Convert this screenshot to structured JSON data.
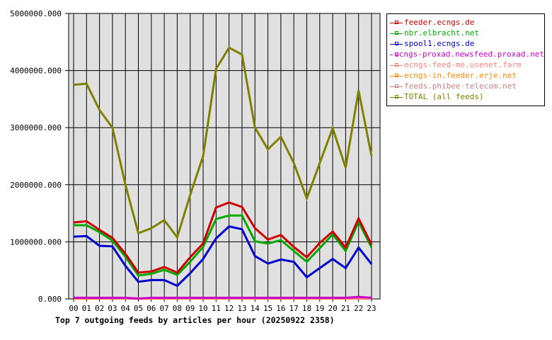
{
  "chart_data": {
    "type": "line",
    "title": "Top 7 outgoing feeds by articles per hour (20250922 2358)",
    "xlabel": "",
    "ylabel": "",
    "ylim": [
      0,
      5000000
    ],
    "yticks": [
      "0.000",
      "1000000.000",
      "2000000.000",
      "3000000.000",
      "4000000.000",
      "5000000.000"
    ],
    "grid": true,
    "legend_position": "right",
    "categories": [
      "00",
      "01",
      "02",
      "03",
      "04",
      "05",
      "06",
      "07",
      "08",
      "09",
      "10",
      "11",
      "12",
      "13",
      "14",
      "15",
      "16",
      "17",
      "18",
      "19",
      "20",
      "21",
      "22",
      "23"
    ],
    "series": [
      {
        "name": "feeder.ecngs.de",
        "color": "#cc0000",
        "values": [
          1340000,
          1360000,
          1210000,
          1070000,
          790000,
          460000,
          480000,
          560000,
          460000,
          730000,
          970000,
          1600000,
          1690000,
          1610000,
          1240000,
          1040000,
          1120000,
          910000,
          730000,
          980000,
          1180000,
          900000,
          1410000,
          950000
        ]
      },
      {
        "name": "nbr.elbracht.net",
        "color": "#00aa00",
        "values": [
          1290000,
          1290000,
          1170000,
          1020000,
          740000,
          410000,
          440000,
          510000,
          420000,
          650000,
          910000,
          1400000,
          1460000,
          1460000,
          1010000,
          970000,
          1030000,
          840000,
          650000,
          890000,
          1130000,
          840000,
          1350000,
          900000
        ]
      },
      {
        "name": "spool1.ecngs.de",
        "color": "#0000cc",
        "values": [
          1090000,
          1100000,
          930000,
          920000,
          580000,
          300000,
          330000,
          330000,
          230000,
          450000,
          700000,
          1060000,
          1270000,
          1220000,
          750000,
          620000,
          690000,
          650000,
          380000,
          540000,
          700000,
          540000,
          900000,
          610000
        ]
      },
      {
        "name": "ecngs-proxad.newsfeed.proxad.net",
        "color": "#cc00cc",
        "values": [
          20000,
          20000,
          20000,
          20000,
          20000,
          5000,
          20000,
          20000,
          20000,
          20000,
          20000,
          20000,
          20000,
          20000,
          20000,
          20000,
          20000,
          20000,
          20000,
          20000,
          20000,
          20000,
          35000,
          20000
        ]
      },
      {
        "name": "ecngs-feed-me.usenet.farm",
        "color": "#ff8080",
        "values": [
          15000,
          15000,
          10000,
          10000,
          10000,
          10000,
          10000,
          10000,
          10000,
          10000,
          10000,
          10000,
          10000,
          10000,
          10000,
          10000,
          10000,
          10000,
          10000,
          10000,
          10000,
          10000,
          10000,
          10000
        ]
      },
      {
        "name": "ecngs-in.feeder.erje.net",
        "color": "#ff8800",
        "values": [
          5000,
          5000,
          5000,
          5000,
          5000,
          5000,
          5000,
          5000,
          5000,
          5000,
          5000,
          5000,
          5000,
          5000,
          5000,
          5000,
          5000,
          5000,
          5000,
          5000,
          5000,
          5000,
          5000,
          5000
        ]
      },
      {
        "name": "feeds.phibee-telecom.net",
        "color": "#cc8080",
        "values": [
          10000,
          10000,
          10000,
          10000,
          10000,
          10000,
          10000,
          10000,
          10000,
          10000,
          10000,
          10000,
          10000,
          10000,
          10000,
          10000,
          10000,
          10000,
          10000,
          10000,
          10000,
          10000,
          10000,
          10000
        ]
      },
      {
        "name": "TOTAL (all feeds)",
        "color": "#808000",
        "values": [
          3750000,
          3770000,
          3310000,
          3000000,
          2000000,
          1150000,
          1240000,
          1380000,
          1080000,
          1820000,
          2500000,
          4030000,
          4400000,
          4280000,
          3000000,
          2620000,
          2840000,
          2380000,
          1760000,
          2380000,
          2990000,
          2300000,
          3650000,
          2500000
        ]
      }
    ]
  },
  "legend": {
    "items": [
      {
        "label": "feeder.ecngs.de",
        "color": "#cc0000"
      },
      {
        "label": "nbr.elbracht.net",
        "color": "#00aa00"
      },
      {
        "label": "spool1.ecngs.de",
        "color": "#0000cc"
      },
      {
        "label": "ecngs-proxad.newsfeed.proxad.net",
        "color": "#cc00cc"
      },
      {
        "label": "ecngs-feed-me.usenet.farm",
        "color": "#ff8080"
      },
      {
        "label": "ecngs-in.feeder.erje.net",
        "color": "#ff8800"
      },
      {
        "label": "feeds.phibee-telecom.net",
        "color": "#cc8080"
      },
      {
        "label": "TOTAL (all feeds)",
        "color": "#808000"
      }
    ]
  },
  "plot": {
    "background": "#e0e0e0",
    "grid_color": "#000000"
  }
}
